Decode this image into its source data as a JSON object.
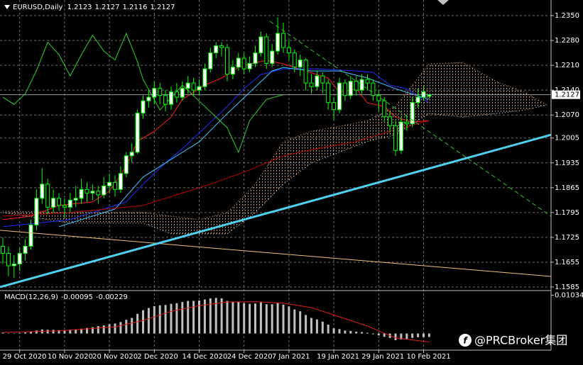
{
  "header": {
    "symbol": "EURUSD,Daily"
  },
  "watermark": "@PRCBroker集团",
  "chart_data": [
    {
      "type": "candlestick",
      "categories": [
        null,
        null,
        null,
        "29 Oct 2020",
        null,
        null,
        null,
        null,
        null,
        null,
        null,
        "10 Nov 2020",
        null,
        null,
        null,
        null,
        null,
        null,
        null,
        "20 Nov 2020",
        null,
        null,
        null,
        null,
        null,
        null,
        null,
        "2 Dec 2020",
        null,
        null,
        null,
        null,
        null,
        null,
        null,
        "14 Dec 2020",
        null,
        null,
        null,
        null,
        null,
        null,
        null,
        "24 Dec 2020",
        null,
        null,
        null,
        null,
        null,
        null,
        null,
        "7 Jan 2021",
        null,
        null,
        null,
        null,
        null,
        null,
        null,
        "19 Jan 2021",
        null,
        null,
        null,
        null,
        null,
        null,
        null,
        "29 Jan 2021",
        null,
        null,
        null,
        null,
        null,
        null,
        null,
        "10 Feb 2021",
        null
      ],
      "open": [
        1.17,
        1.168,
        1.1645,
        1.165,
        1.168,
        1.17,
        1.176,
        1.1835,
        1.1875,
        1.181,
        1.1835,
        1.1815,
        1.181,
        1.183,
        1.1835,
        1.186,
        1.185,
        1.1855,
        1.1845,
        1.187,
        1.188,
        1.186,
        1.1905,
        1.1955,
        1.1965,
        1.2075,
        1.211,
        1.212,
        1.2145,
        1.2125,
        1.21,
        1.2135,
        1.212,
        1.2145,
        1.216,
        1.214,
        1.215,
        1.22,
        1.2245,
        1.2265,
        1.226,
        1.2185,
        1.2205,
        1.223,
        1.22,
        1.2215,
        1.2245,
        1.229,
        1.2215,
        1.225,
        1.23,
        1.226,
        1.2245,
        1.2205,
        1.2225,
        1.216,
        1.215,
        1.218,
        1.216,
        1.2105,
        1.2085,
        1.216,
        1.2125,
        1.2165,
        1.214,
        1.217,
        1.216,
        1.2125,
        1.211,
        1.2065,
        1.204,
        1.197,
        1.205,
        1.2045,
        1.2105,
        1.212,
        1.2123
      ],
      "high": [
        1.1725,
        1.17,
        1.1675,
        1.1695,
        1.172,
        1.1775,
        1.186,
        1.192,
        1.189,
        1.186,
        1.185,
        1.1835,
        1.185,
        1.187,
        1.189,
        1.188,
        1.1875,
        1.187,
        1.1895,
        1.1905,
        1.19,
        1.1925,
        1.1965,
        1.199,
        1.2085,
        1.2125,
        1.214,
        1.2165,
        1.216,
        1.214,
        1.215,
        1.216,
        1.2165,
        1.218,
        1.2175,
        1.217,
        1.2215,
        1.226,
        1.2275,
        1.2275,
        1.227,
        1.2225,
        1.2245,
        1.2245,
        1.2235,
        1.2265,
        1.2305,
        1.23,
        1.227,
        1.2345,
        1.233,
        1.228,
        1.2255,
        1.224,
        1.223,
        1.2185,
        1.2195,
        1.219,
        1.217,
        1.212,
        1.2175,
        1.217,
        1.218,
        1.218,
        1.2185,
        1.2185,
        1.217,
        1.214,
        1.212,
        1.208,
        1.2055,
        1.2065,
        1.207,
        1.212,
        1.2145,
        1.215,
        1.2127
      ],
      "low": [
        1.165,
        1.1615,
        1.161,
        1.163,
        1.166,
        1.169,
        1.1745,
        1.182,
        1.179,
        1.1795,
        1.18,
        1.178,
        1.1795,
        1.181,
        1.182,
        1.1825,
        1.183,
        1.182,
        1.1835,
        1.185,
        1.184,
        1.185,
        1.1895,
        1.1935,
        1.196,
        1.206,
        1.209,
        1.21,
        1.21,
        1.208,
        1.2085,
        1.2105,
        1.211,
        1.213,
        1.2125,
        1.2125,
        1.214,
        1.219,
        1.223,
        1.2235,
        1.2165,
        1.217,
        1.2195,
        1.2185,
        1.219,
        1.2205,
        1.2235,
        1.22,
        1.2205,
        1.224,
        1.2245,
        1.2225,
        1.219,
        1.218,
        1.214,
        1.213,
        1.214,
        1.213,
        1.2085,
        1.2055,
        1.2075,
        1.211,
        1.2115,
        1.2125,
        1.213,
        1.214,
        1.211,
        1.208,
        1.205,
        1.202,
        1.1955,
        1.196,
        1.2025,
        1.2035,
        1.209,
        1.211,
        1.2116
      ],
      "close": [
        1.168,
        1.1645,
        1.165,
        1.168,
        1.17,
        1.176,
        1.1835,
        1.1875,
        1.181,
        1.1835,
        1.1815,
        1.181,
        1.183,
        1.1835,
        1.186,
        1.185,
        1.1855,
        1.1845,
        1.187,
        1.188,
        1.186,
        1.1905,
        1.1955,
        1.1965,
        1.2075,
        1.211,
        1.212,
        1.2145,
        1.2125,
        1.21,
        1.2135,
        1.212,
        1.2145,
        1.216,
        1.214,
        1.215,
        1.22,
        1.2245,
        1.2265,
        1.226,
        1.2185,
        1.2205,
        1.223,
        1.22,
        1.2215,
        1.2245,
        1.229,
        1.2215,
        1.225,
        1.23,
        1.226,
        1.2245,
        1.2205,
        1.2225,
        1.216,
        1.215,
        1.218,
        1.216,
        1.2105,
        1.2085,
        1.216,
        1.2125,
        1.2165,
        1.214,
        1.217,
        1.216,
        1.2125,
        1.211,
        1.2065,
        1.204,
        1.197,
        1.205,
        1.2045,
        1.2105,
        1.212,
        1.2135,
        1.2127
      ],
      "up_color": "#ffffff",
      "down_color": "#000000",
      "wick_color": "#00ff00",
      "ylim": [
        1.1575,
        1.2394
      ],
      "yticks": [
        {
          "value": 1.235,
          "label": "1.2350"
        },
        {
          "value": 1.228,
          "label": "1.2280"
        },
        {
          "value": 1.221,
          "label": "1.2210"
        },
        {
          "value": 1.214,
          "label": "1.2140"
        },
        {
          "value": 1.207,
          "label": "1.2070"
        },
        {
          "value": 1.2005,
          "label": "1.2005"
        },
        {
          "value": 1.1935,
          "label": "1.1935"
        },
        {
          "value": 1.1865,
          "label": "1.1865"
        },
        {
          "value": 1.1795,
          "label": "1.1795"
        },
        {
          "value": 1.1725,
          "label": "1.1725"
        },
        {
          "value": 1.1655,
          "label": "1.1655"
        },
        {
          "value": 1.1585,
          "label": "1.1585"
        }
      ],
      "grid": true,
      "cloud": {
        "color": "#f4b183",
        "color_b": "#e8e8e8",
        "x": [
          0,
          12,
          25,
          30,
          35,
          40,
          45,
          50,
          55,
          60,
          65,
          70,
          76,
          82,
          88,
          93,
          97
        ],
        "span_a": [
          1.1799,
          1.1795,
          1.1795,
          1.1785,
          1.1775,
          1.1795,
          1.1875,
          1.1995,
          1.2024,
          1.2038,
          1.2054,
          1.2094,
          1.2214,
          1.2218,
          1.2164,
          1.2134,
          1.2098
        ],
        "span_b": [
          1.1795,
          1.1765,
          1.1765,
          1.1735,
          1.1735,
          1.1735,
          1.1795,
          1.1875,
          1.1935,
          1.1965,
          1.1995,
          1.2014,
          1.2074,
          1.2064,
          1.2074,
          1.2084,
          1.2098
        ]
      },
      "lines": [
        {
          "color": "#ff2020",
          "style": "solid",
          "x": [
            0,
            5,
            10,
            16,
            19,
            22,
            24,
            27,
            30,
            32,
            36,
            39,
            42,
            44,
            47,
            50,
            54,
            58,
            60,
            63,
            65,
            68,
            70,
            73,
            76
          ],
          "values": [
            1.1775,
            1.1785,
            1.1815,
            1.1825,
            1.1855,
            1.1925,
            1.1995,
            1.2024,
            1.2064,
            1.2114,
            1.2154,
            1.2174,
            1.2204,
            1.2214,
            1.2224,
            1.2214,
            1.2194,
            1.2174,
            1.2134,
            1.2144,
            1.2104,
            1.2094,
            1.2064,
            1.205,
            1.2054
          ]
        },
        {
          "color": "#2030ff",
          "style": "solid",
          "x": [
            0,
            6,
            12,
            18,
            22,
            25,
            29,
            32,
            36,
            40,
            43,
            46,
            50,
            56,
            63,
            66,
            69,
            72,
            76
          ],
          "values": [
            1.1755,
            1.1765,
            1.1775,
            1.1805,
            1.1825,
            1.1875,
            1.1935,
            1.1975,
            1.2034,
            1.2094,
            1.2144,
            1.2184,
            1.22,
            1.22,
            1.2194,
            1.219,
            1.2154,
            1.2144,
            1.2104
          ]
        },
        {
          "color": "#40c8ff",
          "style": "solid",
          "x": [
            10,
            20,
            25,
            30,
            35,
            40,
            44,
            48,
            50,
            55,
            60,
            65,
            70,
            76
          ],
          "values": [
            1.1755,
            1.1805,
            1.1895,
            1.1945,
            1.1994,
            1.2074,
            1.2134,
            1.2194,
            1.2204,
            1.2194,
            1.2194,
            1.2174,
            1.2144,
            1.2114
          ]
        },
        {
          "color": "#c00000",
          "style": "solid",
          "x": [
            0,
            12,
            25,
            31,
            37,
            44,
            50,
            56,
            63,
            69,
            76
          ],
          "values": [
            1.1785,
            1.1795,
            1.1815,
            1.1845,
            1.1875,
            1.1915,
            1.1955,
            1.1975,
            1.1995,
            1.2024,
            1.2054
          ]
        },
        {
          "color": "#30d030",
          "style": "solid",
          "x": [
            0,
            2,
            4,
            6,
            8,
            10,
            12,
            14,
            16,
            18,
            20,
            22,
            24,
            25,
            28,
            32,
            36,
            40,
            42,
            44,
            47,
            50
          ],
          "values": [
            1.212,
            1.21,
            1.213,
            1.2195,
            1.2275,
            1.224,
            1.218,
            1.224,
            1.2295,
            1.225,
            1.2225,
            1.23,
            1.222,
            1.217,
            1.2084,
            1.2154,
            1.2094,
            1.2034,
            1.1965,
            1.2054,
            1.2114,
            1.2127
          ]
        }
      ],
      "trendlines": [
        {
          "color": "#f0c080",
          "style": "solid",
          "x": [
            -0.5,
            97.7
          ],
          "values": [
            1.1745,
            1.1615
          ]
        },
        {
          "color": "#50d0f0",
          "style": "thick",
          "x": [
            -0.5,
            97.7
          ],
          "values": [
            1.1585,
            1.2014
          ]
        },
        {
          "color": "#30c030",
          "style": "dashed",
          "x": [
            47.6,
            97.7
          ],
          "values": [
            1.2334,
            1.1785
          ]
        }
      ]
    },
    {
      "type": "macd",
      "title": "MACD(12,26,9)",
      "color": "#c0c0c0",
      "values": [
        0.0002,
        0.0,
        -0.0001,
        0.0001,
        0.0003,
        0.0005,
        0.0008,
        0.0011,
        0.001,
        0.001,
        0.0009,
        0.0009,
        0.001,
        0.0011,
        0.0013,
        0.0015,
        0.0017,
        0.002,
        0.0022,
        0.0025,
        0.0027,
        0.0031,
        0.0037,
        0.0042,
        0.0053,
        0.0063,
        0.0069,
        0.0074,
        0.0076,
        0.0077,
        0.008,
        0.0082,
        0.0085,
        0.0088,
        0.0088,
        0.0089,
        0.0092,
        0.0095,
        0.0096,
        0.0095,
        0.0088,
        0.0086,
        0.0085,
        0.0082,
        0.008,
        0.0081,
        0.0084,
        0.0079,
        0.0079,
        0.0082,
        0.0078,
        0.0073,
        0.0065,
        0.006,
        0.005,
        0.0042,
        0.0038,
        0.0032,
        0.0024,
        0.0014,
        0.0012,
        0.0008,
        0.0007,
        0.0005,
        0.0004,
        0.0002,
        -0.0002,
        -0.0005,
        -0.0009,
        -0.0012,
        -0.0018,
        -0.0016,
        -0.0015,
        -0.0012,
        -0.001,
        -0.001,
        -0.00095
      ],
      "signal": {
        "color": "#e02020",
        "x": [
          0,
          10,
          20,
          25,
          30,
          35,
          40,
          45,
          50,
          55,
          60,
          65,
          70,
          76
        ],
        "values": [
          0.0003,
          0.0007,
          0.0018,
          0.0035,
          0.006,
          0.0075,
          0.0085,
          0.0086,
          0.0082,
          0.007,
          0.0045,
          0.002,
          -0.0012,
          -0.00229
        ]
      },
      "ylim": [
        -0.0041,
        0.0112
      ],
      "yticks": [
        0.01034
      ]
    }
  ]
}
